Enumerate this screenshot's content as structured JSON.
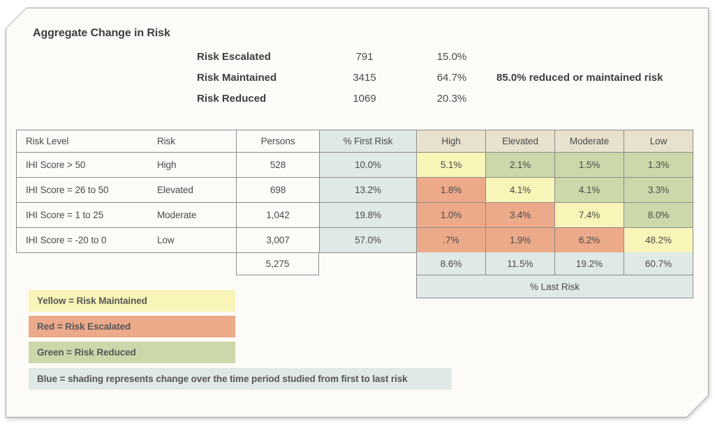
{
  "colors": {
    "yellow": "#f9f4b7",
    "red": "#ecaa8a",
    "green": "#ccd8a9",
    "blue": "#dfe9e6",
    "tan": "#e8e1cd",
    "card_bg": "#fcfbf8"
  },
  "chart_data": {
    "type": "table",
    "title": "Aggregate Change in Risk",
    "summary": {
      "rows": [
        {
          "label": "Risk Escalated",
          "count": "791",
          "pct": "15.0%"
        },
        {
          "label": "Risk Maintained",
          "count": "3415",
          "pct": "64.7%"
        },
        {
          "label": "Risk Reduced",
          "count": "1069",
          "pct": "20.3%"
        }
      ],
      "note": "85.0% reduced or maintained risk"
    },
    "header": {
      "risk_level": "Risk Level",
      "risk": "Risk",
      "persons": "Persons",
      "first_risk": "% First Risk",
      "change_cols": [
        "High",
        "Elevated",
        "Moderate",
        "Low"
      ]
    },
    "rows": [
      {
        "risk_level": "IHI Score > 50",
        "risk": "High",
        "persons": "528",
        "first_risk": "10.0%",
        "cells": [
          {
            "v": "5.1%",
            "c": "yellow"
          },
          {
            "v": "2.1%",
            "c": "green"
          },
          {
            "v": "1.5%",
            "c": "green"
          },
          {
            "v": "1.3%",
            "c": "green"
          }
        ]
      },
      {
        "risk_level": "IHI Score = 26 to 50",
        "risk": "Elevated",
        "persons": "698",
        "first_risk": "13.2%",
        "cells": [
          {
            "v": "1.8%",
            "c": "red"
          },
          {
            "v": "4.1%",
            "c": "yellow"
          },
          {
            "v": "4.1%",
            "c": "green"
          },
          {
            "v": "3.3%",
            "c": "green"
          }
        ]
      },
      {
        "risk_level": "IHI Score = 1 to 25",
        "risk": "Moderate",
        "persons": "1,042",
        "first_risk": "19.8%",
        "cells": [
          {
            "v": "1.0%",
            "c": "red"
          },
          {
            "v": "3.4%",
            "c": "red"
          },
          {
            "v": "7.4%",
            "c": "yellow"
          },
          {
            "v": "8.0%",
            "c": "green"
          }
        ]
      },
      {
        "risk_level": "IHI Score = -20 to 0",
        "risk": "Low",
        "persons": "3,007",
        "first_risk": "57.0%",
        "cells": [
          {
            "v": ".7%",
            "c": "red"
          },
          {
            "v": "1.9%",
            "c": "red"
          },
          {
            "v": "6.2%",
            "c": "red"
          },
          {
            "v": "48.2%",
            "c": "yellow"
          }
        ]
      }
    ],
    "totals": {
      "persons_total": "5,275",
      "last_risk_values": [
        "8.6%",
        "11.5%",
        "19.2%",
        "60.7%"
      ],
      "last_risk_label": "% Last Risk"
    },
    "legend": [
      {
        "label": "Yellow = Risk Maintained",
        "color": "yellow"
      },
      {
        "label": "Red = Risk Escalated",
        "color": "red"
      },
      {
        "label": "Green = Risk Reduced",
        "color": "green"
      },
      {
        "label": "Blue = shading represents change over the time period studied from first to last risk",
        "color": "blue"
      }
    ]
  }
}
